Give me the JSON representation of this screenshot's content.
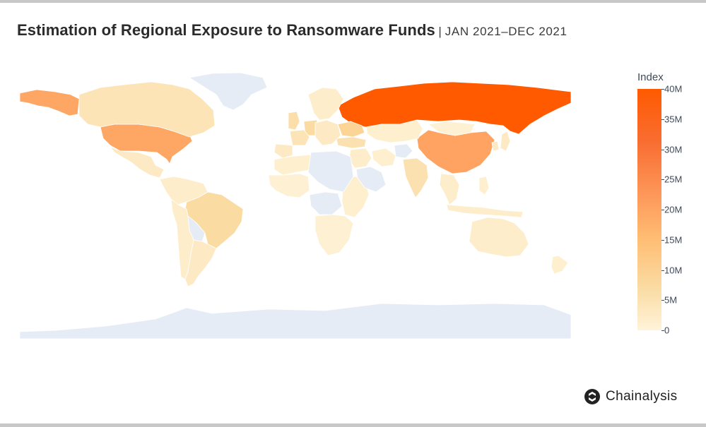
{
  "header": {
    "title": "Estimation of Regional Exposure to Ransomware Funds",
    "separator": "|",
    "subtitle": "JAN 2021–DEC 2021"
  },
  "brand": {
    "name": "Chainalysis",
    "icon": "chainalysis-logo-icon"
  },
  "colors": {
    "no_data": "#e6ecf5",
    "scale": [
      "#fff3d9",
      "#fadba2",
      "#ffbd73",
      "#fd9a5b",
      "#f96d31",
      "#ff5a00"
    ]
  },
  "chart_data": {
    "type": "choropleth",
    "title": "Estimation of Regional Exposure to Ransomware Funds",
    "subtitle": "JAN 2021–DEC 2021",
    "colorbar": {
      "title": "Index",
      "range": [
        0,
        40000000
      ],
      "tick_labels": [
        "40M",
        "35M",
        "30M",
        "25M",
        "20M",
        "15M",
        "10M",
        "5M",
        "0"
      ],
      "tick_values": [
        40000000,
        35000000,
        30000000,
        25000000,
        20000000,
        15000000,
        10000000,
        5000000,
        0
      ]
    },
    "regions": [
      {
        "name": "Russia",
        "value": 40000000
      },
      {
        "name": "China",
        "value": 22000000
      },
      {
        "name": "United States",
        "value": 21000000
      },
      {
        "name": "Alaska",
        "value": 21000000
      },
      {
        "name": "Brazil",
        "value": 8000000
      },
      {
        "name": "Canada",
        "value": 5000000
      },
      {
        "name": "Ukraine",
        "value": 10000000
      },
      {
        "name": "Germany",
        "value": 8000000
      },
      {
        "name": "United Kingdom",
        "value": 7000000
      },
      {
        "name": "France",
        "value": 5000000
      },
      {
        "name": "India",
        "value": 6000000
      },
      {
        "name": "Turkey",
        "value": 6000000
      },
      {
        "name": "Japan",
        "value": 3000000
      },
      {
        "name": "Australia",
        "value": 2000000
      },
      {
        "name": "Mexico",
        "value": 3000000
      },
      {
        "name": "Argentina",
        "value": 3000000
      },
      {
        "name": "Kazakhstan",
        "value": 1500000
      },
      {
        "name": "Mongolia",
        "value": 1000000
      },
      {
        "name": "Nordics",
        "value": 2000000
      },
      {
        "name": "Central Europe",
        "value": 3000000
      },
      {
        "name": "Spain",
        "value": 3000000
      },
      {
        "name": "North Africa",
        "value": 1500000
      },
      {
        "name": "West Africa",
        "value": 1000000
      },
      {
        "name": "East Africa",
        "value": 1500000
      },
      {
        "name": "Southern Africa",
        "value": 1000000
      },
      {
        "name": "Middle East",
        "value": 2000000
      },
      {
        "name": "Iran",
        "value": 1500000
      },
      {
        "name": "Southeast Asia",
        "value": 2000000
      },
      {
        "name": "Indonesia",
        "value": 2000000
      },
      {
        "name": "Philippines",
        "value": 1500000
      },
      {
        "name": "Colombia-Venezuela",
        "value": 2000000
      },
      {
        "name": "Peru-Chile",
        "value": 2000000
      },
      {
        "name": "New Zealand",
        "value": 1500000
      },
      {
        "name": "South Korea",
        "value": 3000000
      },
      {
        "name": "Greenland",
        "value": null
      },
      {
        "name": "Antarctica",
        "value": null
      },
      {
        "name": "Sahara",
        "value": null
      },
      {
        "name": "Congo Basin",
        "value": null
      },
      {
        "name": "Bolivia",
        "value": null
      },
      {
        "name": "Arabian Peninsula",
        "value": null
      },
      {
        "name": "Afghanistan",
        "value": null
      }
    ]
  }
}
